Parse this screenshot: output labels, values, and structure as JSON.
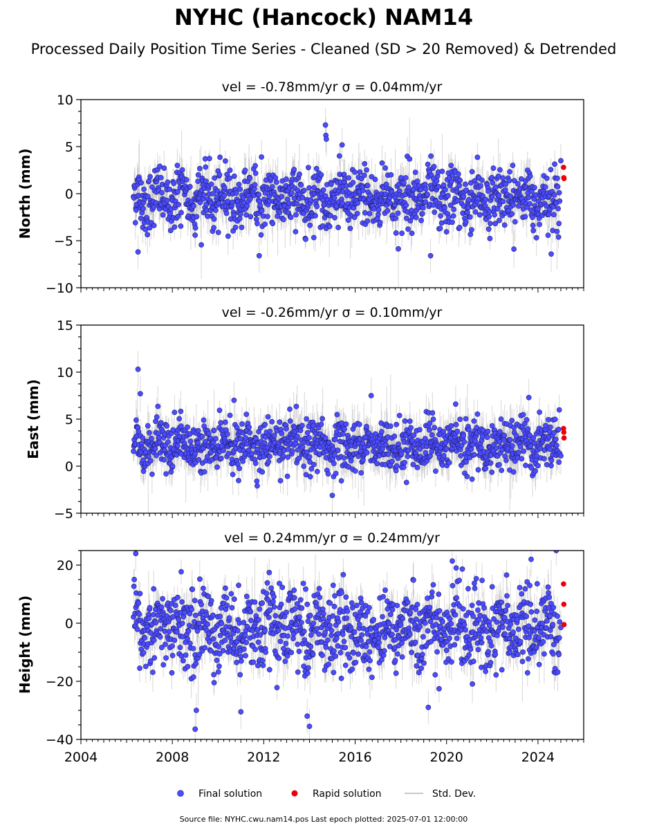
{
  "title": "NYHC (Hancock) NAM14",
  "subtitle": "Processed Daily Position Time Series - Cleaned (SD > 20 Removed) & Detrended",
  "legend": {
    "final": "Final solution",
    "rapid": "Rapid solution",
    "stddev": "Std. Dev."
  },
  "footer": "Source file: NYHC.cwu.nam14.pos  Last epoch plotted: 2025-07-01 12:00:00",
  "colors": {
    "final": "#4b4bff",
    "rapid": "#e8000b",
    "stddev": "#9a9a9a"
  },
  "chart_data": [
    {
      "type": "scatter",
      "panel": "north",
      "title": "vel = -0.78mm/yr   σ = 0.04mm/yr",
      "ylabel": "North (mm)",
      "xlim": [
        2004,
        2026
      ],
      "ylim": [
        -10,
        10
      ],
      "yticks": [
        -10,
        -5,
        0,
        5,
        10
      ],
      "xticks": [
        2004,
        2008,
        2012,
        2016,
        2020,
        2024
      ],
      "final": {
        "x_range": [
          2006.3,
          2024.95
        ],
        "mean": -0.5,
        "spread": 1.6,
        "sd_typ": 1.4,
        "highlights": [
          [
            2014.7,
            7.3
          ],
          [
            2014.72,
            6.2
          ],
          [
            2014.74,
            5.8
          ],
          [
            2011.9,
            3.9
          ],
          [
            2006.5,
            -6.2
          ],
          [
            2019.3,
            -6.6
          ],
          [
            2011.8,
            -6.6
          ],
          [
            2025.0,
            3.5
          ]
        ]
      },
      "rapid": {
        "x": [
          2025.12,
          2025.13,
          2025.14
        ],
        "y": [
          2.8,
          1.7,
          1.6
        ]
      }
    },
    {
      "type": "scatter",
      "panel": "east",
      "title": "vel = -0.26mm/yr   σ = 0.10mm/yr",
      "ylabel": "East (mm)",
      "xlim": [
        2004,
        2026
      ],
      "ylim": [
        -5,
        15
      ],
      "yticks": [
        -5,
        0,
        5,
        10,
        15
      ],
      "xticks": [
        2004,
        2008,
        2012,
        2016,
        2020,
        2024
      ],
      "final": {
        "x_range": [
          2006.3,
          2024.95
        ],
        "mean": 2.2,
        "spread": 1.3,
        "sd_typ": 1.5,
        "highlights": [
          [
            2006.5,
            10.3
          ],
          [
            2006.6,
            7.7
          ],
          [
            2016.7,
            7.5
          ],
          [
            2010.7,
            7.0
          ],
          [
            2020.4,
            6.6
          ],
          [
            2023.6,
            7.3
          ],
          [
            2015.0,
            -3.1
          ],
          [
            2025.0,
            1.1
          ]
        ]
      },
      "rapid": {
        "x": [
          2025.12,
          2025.13,
          2025.14
        ],
        "y": [
          4.0,
          3.6,
          3.0
        ]
      }
    },
    {
      "type": "scatter",
      "panel": "height",
      "title": "vel = 0.24mm/yr   σ = 0.24mm/yr",
      "ylabel": "Height (mm)",
      "xlim": [
        2004,
        2026
      ],
      "ylim": [
        -40,
        25
      ],
      "yticks": [
        -40,
        -20,
        0,
        20
      ],
      "xticks": [
        2004,
        2008,
        2012,
        2016,
        2020,
        2024
      ],
      "xticklabels": [
        "2004",
        "2008",
        "2012",
        "2016",
        "2020",
        "2024"
      ],
      "final": {
        "x_range": [
          2006.3,
          2024.95
        ],
        "mean": -2.0,
        "spread": 7.0,
        "sd_typ": 4.5,
        "highlights": [
          [
            2006.4,
            24.0
          ],
          [
            2009.0,
            -36.5
          ],
          [
            2009.05,
            -30.0
          ],
          [
            2014.0,
            -35.5
          ],
          [
            2013.9,
            -32.0
          ],
          [
            2011.0,
            -30.5
          ],
          [
            2019.2,
            -29.0
          ],
          [
            2023.7,
            22.0
          ],
          [
            2025.0,
            -1.5
          ]
        ]
      },
      "rapid": {
        "x": [
          2025.12,
          2025.13,
          2025.14
        ],
        "y": [
          13.5,
          6.5,
          -0.5
        ]
      }
    }
  ]
}
